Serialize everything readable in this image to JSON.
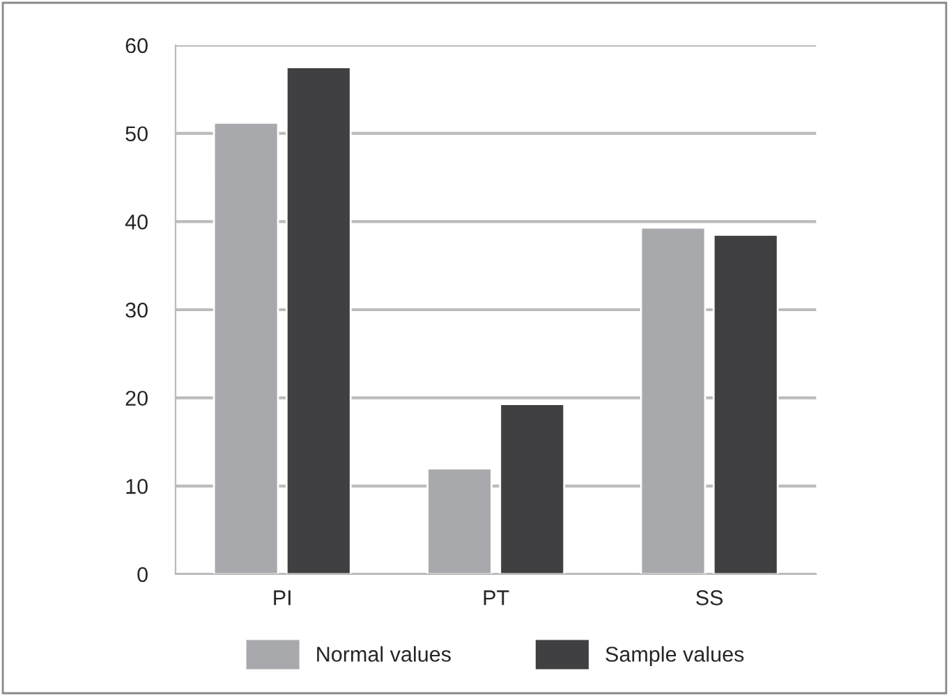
{
  "chart_data": {
    "type": "bar",
    "categories": [
      "PI",
      "PT",
      "SS"
    ],
    "series": [
      {
        "name": "Normal values",
        "color": "#a8a9ad",
        "values": [
          51.2,
          12.0,
          39.3
        ]
      },
      {
        "name": "Sample values",
        "color": "#404042",
        "values": [
          57.5,
          19.3,
          38.5
        ]
      }
    ],
    "ylim": [
      0,
      60
    ],
    "yticks": [
      0,
      10,
      20,
      30,
      40,
      50,
      60
    ],
    "grid": "y",
    "legend": "bottom"
  }
}
